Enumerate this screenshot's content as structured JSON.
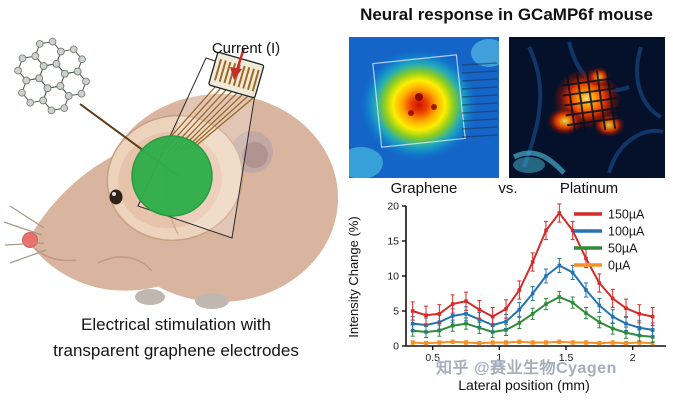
{
  "left_panel": {
    "current_label": "Current (I)",
    "caption_line1": "Electrical stimulation with",
    "caption_line2": "transparent graphene electrodes"
  },
  "right_panel": {
    "title": "Neural response in GCaMP6f mouse",
    "labels": {
      "left": "Graphene",
      "vs": "vs.",
      "right": "Platinum"
    }
  },
  "watermark": "知乎 @赛业生物Cyagen",
  "chart_data": {
    "type": "line",
    "title": "",
    "xlabel": "Lateral position (mm)",
    "ylabel": "Intensity Change (%)",
    "xlim": [
      0.3,
      2.25
    ],
    "ylim": [
      0,
      20
    ],
    "yticks": [
      0,
      5,
      10,
      15,
      20
    ],
    "xticks": [
      0.5,
      1.0,
      1.5,
      2.0
    ],
    "grid": false,
    "legend_position": "top-right",
    "x": [
      0.35,
      0.45,
      0.55,
      0.65,
      0.75,
      0.85,
      0.95,
      1.05,
      1.15,
      1.25,
      1.35,
      1.45,
      1.55,
      1.65,
      1.75,
      1.85,
      1.95,
      2.05,
      2.15
    ],
    "series": [
      {
        "name": "150µA",
        "color": "#d62b28",
        "error": 1.3,
        "values": [
          5.0,
          4.4,
          4.6,
          6.0,
          6.4,
          5.2,
          4.2,
          5.3,
          8.0,
          12.0,
          16.5,
          19.0,
          16.5,
          12.5,
          9.0,
          6.8,
          5.4,
          4.6,
          4.2
        ]
      },
      {
        "name": "100µA",
        "color": "#2472b2",
        "error": 1.0,
        "values": [
          3.2,
          3.0,
          3.4,
          4.3,
          4.6,
          3.8,
          3.0,
          3.5,
          5.2,
          7.5,
          10.0,
          11.5,
          10.5,
          8.0,
          5.8,
          4.2,
          3.2,
          2.6,
          2.3
        ]
      },
      {
        "name": "50µA",
        "color": "#2e8b3a",
        "error": 0.8,
        "values": [
          2.2,
          2.0,
          2.2,
          2.9,
          3.2,
          2.6,
          2.0,
          2.3,
          3.3,
          4.6,
          6.0,
          7.0,
          6.2,
          4.7,
          3.4,
          2.5,
          1.9,
          1.5,
          1.3
        ]
      },
      {
        "name": "0µA",
        "color": "#f59027",
        "error": 0.25,
        "values": [
          0.5,
          0.4,
          0.5,
          0.6,
          0.5,
          0.4,
          0.5,
          0.5,
          0.6,
          0.5,
          0.5,
          0.6,
          0.5,
          0.5,
          0.4,
          0.5,
          0.4,
          0.5,
          0.4
        ]
      }
    ]
  }
}
